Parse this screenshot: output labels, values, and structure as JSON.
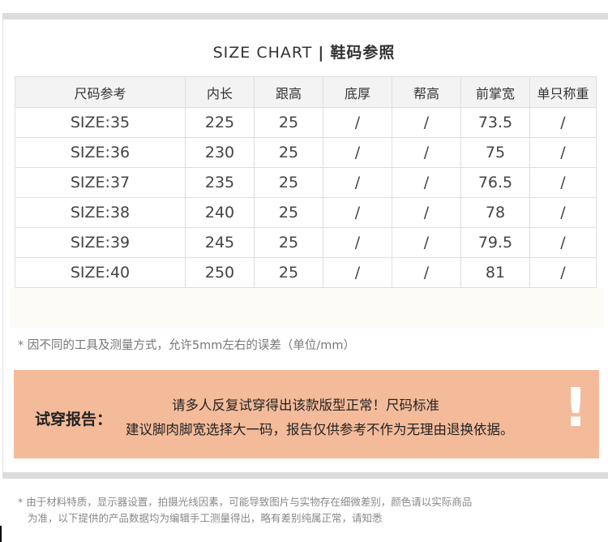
{
  "title": {
    "en": "SIZE CHART",
    "sep": "|",
    "zh": "鞋码参照"
  },
  "table": {
    "headers": [
      "尺码参考",
      "内长",
      "跟高",
      "底厚",
      "帮高",
      "前掌宽",
      "单只称重"
    ],
    "rows": [
      [
        "SIZE:35",
        "225",
        "25",
        "/",
        "/",
        "73.5",
        "/"
      ],
      [
        "SIZE:36",
        "230",
        "25",
        "/",
        "/",
        "75",
        "/"
      ],
      [
        "SIZE:37",
        "235",
        "25",
        "/",
        "/",
        "76.5",
        "/"
      ],
      [
        "SIZE:38",
        "240",
        "25",
        "/",
        "/",
        "78",
        "/"
      ],
      [
        "SIZE:39",
        "245",
        "25",
        "/",
        "/",
        "79.5",
        "/"
      ],
      [
        "SIZE:40",
        "250",
        "25",
        "/",
        "/",
        "81",
        "/"
      ]
    ]
  },
  "note": "* 因不同的工具及测量方式，允许5mm左右的误差（单位/mm）",
  "report": {
    "label": "试穿报告：",
    "line1": "请多人反复试穿得出该款版型正常！尺码标准",
    "line2": "建议脚肉脚宽选择大一码，报告仅供参考不作为无理由退换依据。",
    "icon": "exclamation",
    "bg_color": "#f4bb9a"
  },
  "footer": {
    "line1": "* 由于材料特质，显示器设置，拍摄光线因素，可能导致图片与实物存在细微差别，颜色请以实际商品",
    "line2": "为准，以下提供的产品数据均为编辑手工测量得出，略有差别纯属正常，请知悉"
  }
}
